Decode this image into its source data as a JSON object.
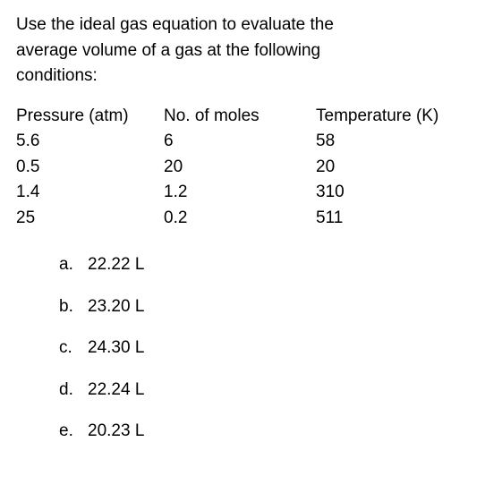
{
  "question": {
    "line1": "Use the ideal gas equation to evaluate the",
    "line2": "average volume of a gas at the following",
    "line3": "conditions:"
  },
  "table": {
    "headers": {
      "col1": "Pressure (atm)",
      "col2": "No. of moles",
      "col3": "Temperature (K)"
    },
    "rows": [
      {
        "col1": "5.6",
        "col2": "6",
        "col3": "58"
      },
      {
        "col1": "0.5",
        "col2": "20",
        "col3": "20"
      },
      {
        "col1": "1.4",
        "col2": "1.2",
        "col3": "310"
      },
      {
        "col1": "25",
        "col2": "0.2",
        "col3": "511"
      }
    ]
  },
  "options": [
    {
      "letter": "a.",
      "text": "22.22 L"
    },
    {
      "letter": "b.",
      "text": "23.20 L"
    },
    {
      "letter": "c.",
      "text": "24.30 L"
    },
    {
      "letter": "d.",
      "text": "22.24 L"
    },
    {
      "letter": "e.",
      "text": "20.23 L"
    }
  ]
}
